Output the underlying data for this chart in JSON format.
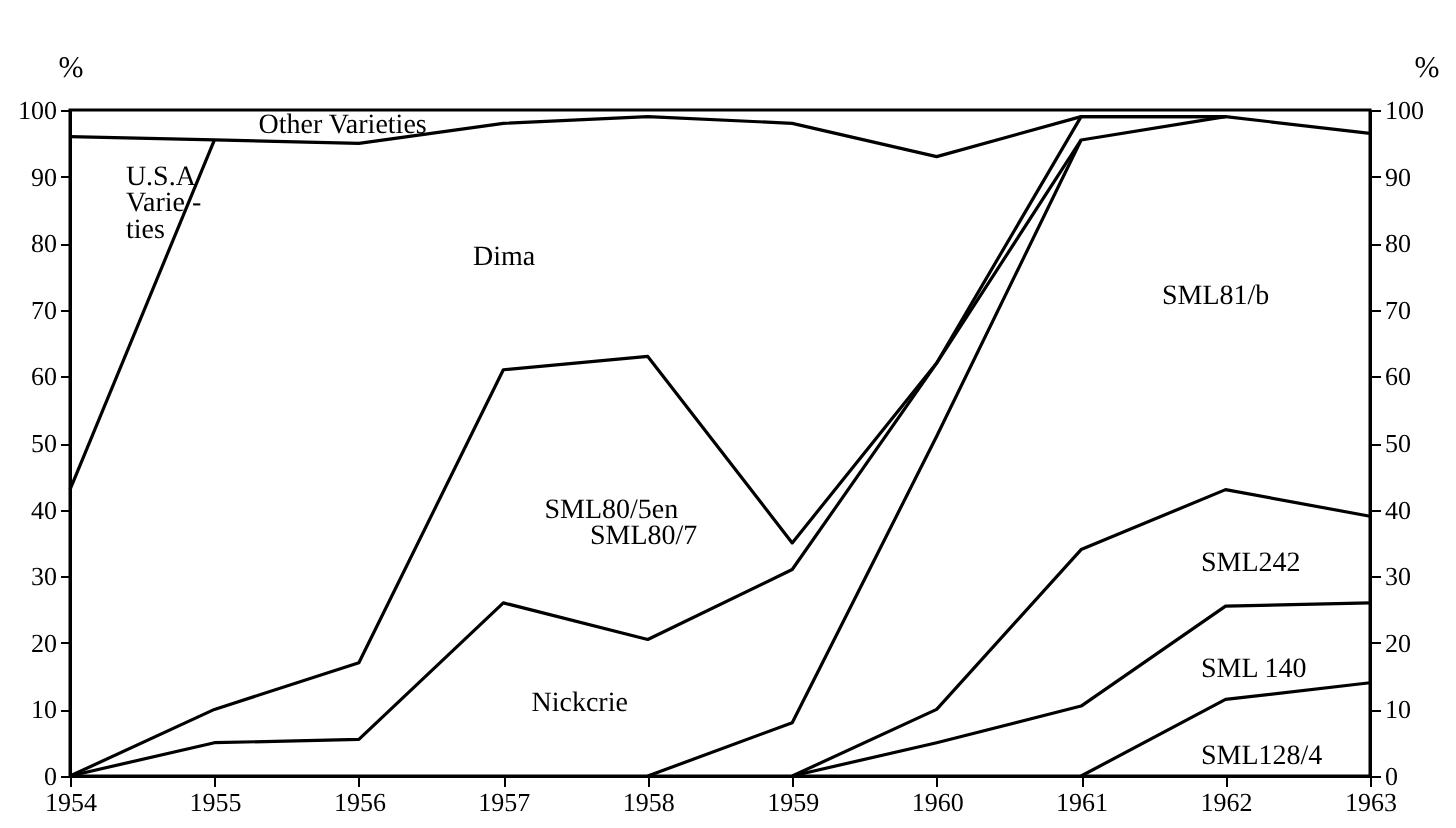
{
  "chart_data": {
    "type": "line",
    "ylabel": "%",
    "y2label": "%",
    "xlim": [
      1954,
      1963
    ],
    "xticks": [
      1954,
      1955,
      1956,
      1957,
      1958,
      1959,
      1960,
      1961,
      1962,
      1963
    ],
    "ylim": [
      0,
      100
    ],
    "yticks": [
      0,
      10,
      20,
      30,
      40,
      50,
      60,
      70,
      80,
      90,
      100
    ],
    "y2lim": [
      0,
      100
    ],
    "y2ticks": [
      0,
      10,
      20,
      30,
      40,
      50,
      60,
      70,
      80,
      90,
      100
    ],
    "grid": false,
    "marker": "none",
    "line_style": "solid",
    "series": [
      {
        "color": "#000000",
        "x": [
          1954,
          1955,
          1956,
          1957,
          1958,
          1959,
          1960,
          1961,
          1962,
          1963
        ],
        "values": [
          96,
          95.5,
          95,
          98,
          99,
          98,
          93,
          99,
          99,
          96.5
        ]
      },
      {
        "color": "#000000",
        "x": [
          1954,
          1955
        ],
        "values": [
          43,
          95.5
        ]
      },
      {
        "color": "#000000",
        "x": [
          1954,
          1955,
          1956,
          1957,
          1958,
          1959,
          1960,
          1961,
          1962
        ],
        "values": [
          0,
          10,
          17,
          61,
          63,
          35,
          62,
          99,
          99
        ]
      },
      {
        "color": "#000000",
        "x": [
          1954,
          1955,
          1956,
          1957,
          1958,
          1959,
          1960,
          1961
        ],
        "values": [
          0,
          5,
          5.5,
          26,
          20.5,
          31,
          62,
          95.5
        ]
      },
      {
        "color": "#000000",
        "x": [
          1958,
          1959,
          1960,
          1961,
          1962
        ],
        "values": [
          0,
          8,
          51,
          95.5,
          99
        ]
      },
      {
        "color": "#000000",
        "x": [
          1959,
          1960,
          1961,
          1962,
          1963
        ],
        "values": [
          0,
          10,
          34,
          43,
          39
        ]
      },
      {
        "color": "#000000",
        "x": [
          1959,
          1960,
          1961,
          1962,
          1963
        ],
        "values": [
          0,
          5,
          10.5,
          25.5,
          26
        ]
      },
      {
        "color": "#000000",
        "x": [
          1961,
          1962,
          1963
        ],
        "values": [
          0,
          11.5,
          14
        ]
      }
    ],
    "annotations": [
      "Other Varieties",
      "U.S.A",
      "Varie -",
      "ties",
      "Dima",
      "SML80/5en",
      "SML80/7",
      "Nickcrie",
      "SML81/b",
      "SML242",
      "SML 140",
      "SML128/4"
    ]
  }
}
